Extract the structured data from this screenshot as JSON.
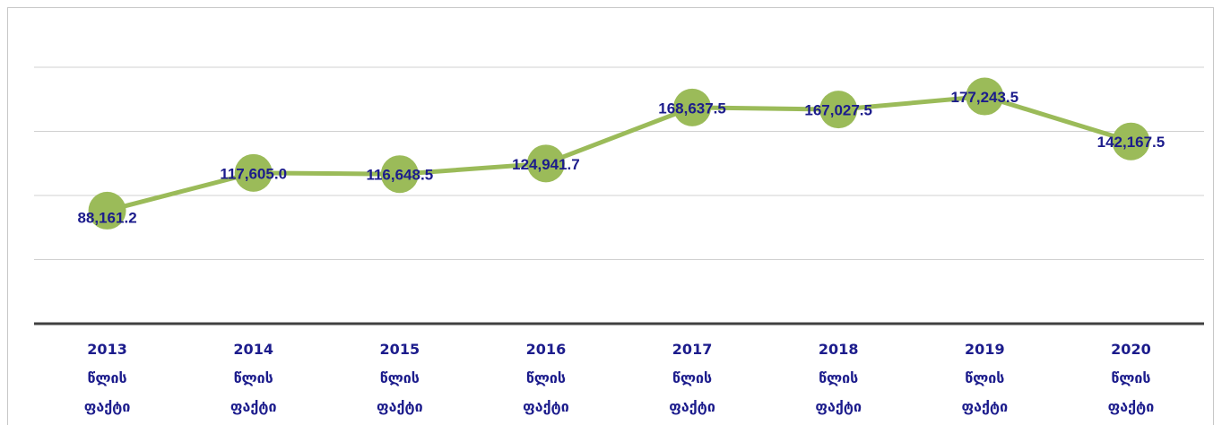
{
  "chart_data": {
    "type": "line",
    "categories": [
      "2013 წლის ფაქტი",
      "2014 წლის ფაქტი",
      "2015 წლის ფაქტი",
      "2016 წლის ფაქტი",
      "2017 წლის ფაქტი",
      "2018 წლის ფაქტი",
      "2019 წლის ფაქტი",
      "2020 წლის ფაქტი"
    ],
    "values": [
      88161.2,
      117605.0,
      116648.5,
      124941.7,
      168637.5,
      167027.5,
      177243.5,
      142167.5
    ],
    "value_labels": [
      "88,161.2",
      "117,605.0",
      "116,648.5",
      "124,941.7",
      "168,637.5",
      "167,027.5",
      "177,243.5",
      "142,167.5"
    ],
    "color": "#9bbb59",
    "ylim": [
      0,
      200000
    ],
    "yticks": [
      0,
      50000,
      100000,
      150000,
      200000
    ],
    "grid": true
  }
}
